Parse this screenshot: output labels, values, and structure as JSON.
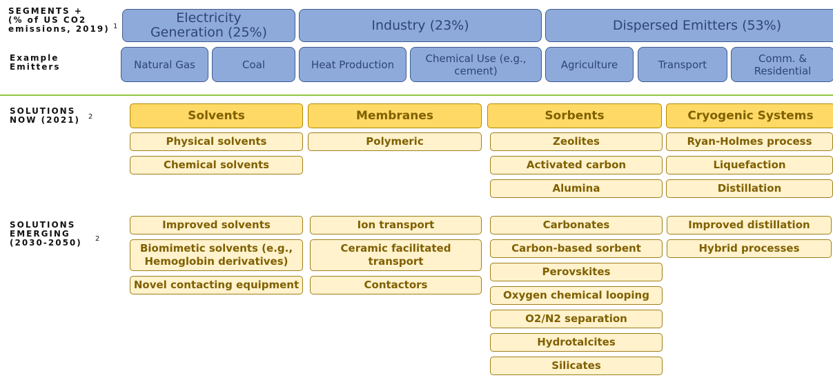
{
  "row_labels": [
    {
      "lines": [
        "SEGMENTS +",
        "(% of US CO2",
        "emissions, 2019)"
      ],
      "note": "1"
    },
    {
      "lines": [
        "Example",
        "Emitters"
      ]
    },
    {
      "lines": [
        "SOLUTIONS",
        "NOW (2021)"
      ],
      "note": "2"
    },
    {
      "lines": [
        "SOLUTIONS",
        "EMERGING",
        "(2030-2050)"
      ],
      "note": "2"
    }
  ],
  "segments": [
    {
      "label": "Electricity Generation (25%)",
      "emitters": [
        "Natural Gas",
        "Coal"
      ]
    },
    {
      "label": "Industry (23%)",
      "emitters": [
        "Heat Production",
        "Chemical Use (e.g., cement)"
      ]
    },
    {
      "label": "Dispersed Emitters (53%)",
      "emitters": [
        "Agriculture",
        "Transport",
        "Comm. & Residential"
      ]
    }
  ],
  "solutions": [
    {
      "header": "Solvents",
      "now": [
        "Physical solvents",
        "Chemical solvents"
      ],
      "emerging": [
        "Improved solvents",
        "Biomimetic solvents (e.g., Hemoglobin derivatives)",
        "Novel contacting equipment"
      ]
    },
    {
      "header": "Membranes",
      "now": [
        "Polymeric"
      ],
      "emerging": [
        "Ion transport",
        "Ceramic facilitated transport",
        "Contactors"
      ]
    },
    {
      "header": "Sorbents",
      "now": [
        "Zeolites",
        "Activated carbon",
        "Alumina"
      ],
      "emerging": [
        "Carbonates",
        "Carbon-based sorbent",
        "Perovskites",
        "Oxygen chemical looping",
        "O2/N2 separation",
        "Hydrotalcites",
        "Silicates"
      ]
    },
    {
      "header": "Cryogenic Systems",
      "now": [
        "Ryan-Holmes process",
        "Liquefaction",
        "Distillation"
      ],
      "emerging": [
        "Improved distillation",
        "Hybrid processes"
      ]
    }
  ]
}
